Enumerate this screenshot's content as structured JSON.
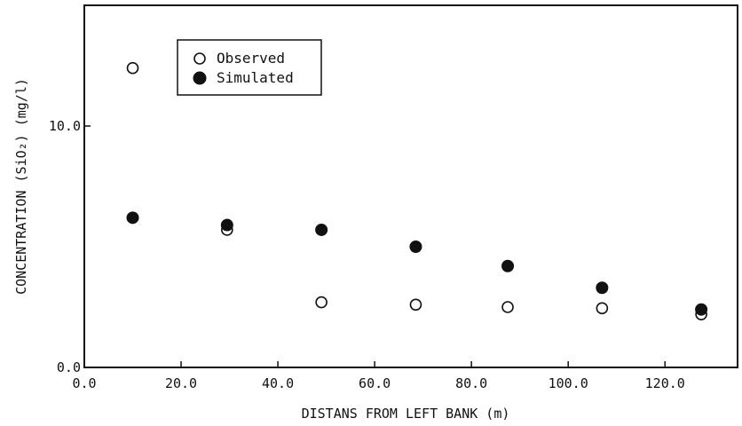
{
  "chart_data": {
    "type": "scatter",
    "title": "",
    "xlabel": "DISTANS FROM LEFT BANK (m)",
    "ylabel": "CONCENTRATION (SiO₂) (mg/l)",
    "xlim": [
      0,
      135
    ],
    "ylim": [
      0,
      15
    ],
    "x_ticks": [
      0,
      20,
      40,
      60,
      80,
      100,
      120
    ],
    "x_tick_labels": [
      "0.0",
      "20.0",
      "40.0",
      "60.0",
      "80.0",
      "100.0",
      "120.0"
    ],
    "y_ticks": [
      0,
      10
    ],
    "y_tick_labels": [
      "0.0",
      "10.0"
    ],
    "grid": false,
    "legend_position": "top-left",
    "series": [
      {
        "name": "Observed",
        "marker": "open-circle",
        "color": "#111111",
        "points": [
          {
            "x": 10.0,
            "y": 12.4
          },
          {
            "x": 29.5,
            "y": 5.7
          },
          {
            "x": 49.0,
            "y": 2.7
          },
          {
            "x": 68.5,
            "y": 2.6
          },
          {
            "x": 87.5,
            "y": 2.5
          },
          {
            "x": 107.0,
            "y": 2.45
          },
          {
            "x": 127.5,
            "y": 2.2
          }
        ]
      },
      {
        "name": "Simulated",
        "marker": "filled-circle",
        "color": "#111111",
        "points": [
          {
            "x": 10.0,
            "y": 6.2
          },
          {
            "x": 29.5,
            "y": 5.9
          },
          {
            "x": 49.0,
            "y": 5.7
          },
          {
            "x": 68.5,
            "y": 5.0
          },
          {
            "x": 87.5,
            "y": 4.2
          },
          {
            "x": 107.0,
            "y": 3.3
          },
          {
            "x": 127.5,
            "y": 2.4
          }
        ]
      }
    ]
  }
}
